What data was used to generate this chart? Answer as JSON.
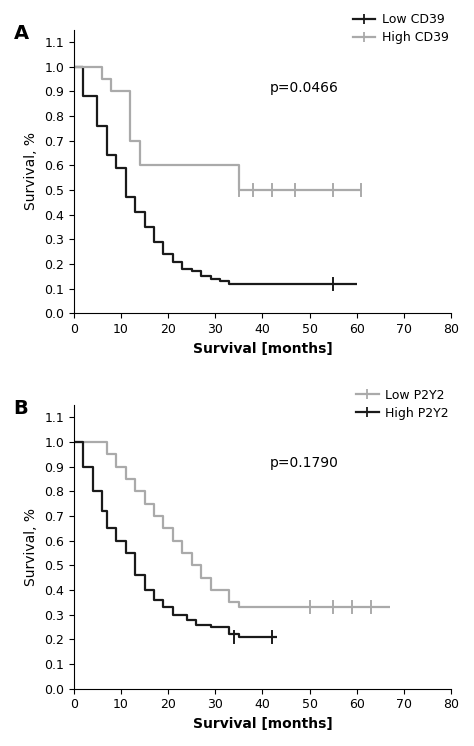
{
  "panel_A": {
    "label": "A",
    "p_value": "p=0.0466",
    "legend": [
      [
        "Low CD39",
        "#1a1a1a"
      ],
      [
        "High CD39",
        "#aaaaaa"
      ]
    ],
    "low_cd39": {
      "times": [
        0,
        2,
        5,
        7,
        9,
        11,
        13,
        15,
        17,
        19,
        21,
        23,
        25,
        27,
        29,
        31,
        33,
        60
      ],
      "surv": [
        1.0,
        0.88,
        0.76,
        0.64,
        0.59,
        0.47,
        0.41,
        0.35,
        0.29,
        0.24,
        0.21,
        0.18,
        0.17,
        0.15,
        0.14,
        0.13,
        0.12,
        0.12
      ],
      "censors_t": [
        55
      ],
      "censors_s": [
        0.12
      ],
      "color": "#1a1a1a"
    },
    "high_cd39": {
      "times": [
        0,
        4,
        6,
        8,
        12,
        14,
        30,
        35,
        61
      ],
      "surv": [
        1.0,
        1.0,
        0.95,
        0.9,
        0.7,
        0.6,
        0.6,
        0.5,
        0.5
      ],
      "censors_t": [
        35,
        38,
        42,
        47,
        55,
        61
      ],
      "censors_s": [
        0.5,
        0.5,
        0.5,
        0.5,
        0.5,
        0.5
      ],
      "color": "#aaaaaa"
    },
    "xlim": [
      0,
      80
    ],
    "ylim": [
      0.0,
      1.15
    ],
    "xticks": [
      0,
      10,
      20,
      30,
      40,
      50,
      60,
      70,
      80
    ],
    "yticks": [
      0.0,
      0.1,
      0.2,
      0.3,
      0.4,
      0.5,
      0.6,
      0.7,
      0.8,
      0.9,
      1.0,
      1.1
    ],
    "xlabel": "Survival [months]",
    "ylabel": "Survival, %"
  },
  "panel_B": {
    "label": "B",
    "p_value": "p=0.1790",
    "legend": [
      [
        "Low P2Y2",
        "#aaaaaa"
      ],
      [
        "High P2Y2",
        "#1a1a1a"
      ]
    ],
    "low_p2y2": {
      "times": [
        0,
        4,
        7,
        9,
        11,
        13,
        15,
        17,
        19,
        21,
        23,
        25,
        27,
        29,
        33,
        35,
        67
      ],
      "surv": [
        1.0,
        1.0,
        0.95,
        0.9,
        0.85,
        0.8,
        0.75,
        0.7,
        0.65,
        0.6,
        0.55,
        0.5,
        0.45,
        0.4,
        0.35,
        0.33,
        0.33
      ],
      "censors_t": [
        50,
        55,
        59,
        63
      ],
      "censors_s": [
        0.33,
        0.33,
        0.33,
        0.33
      ],
      "color": "#aaaaaa"
    },
    "high_p2y2": {
      "times": [
        0,
        2,
        4,
        6,
        7,
        9,
        11,
        13,
        15,
        17,
        19,
        21,
        24,
        26,
        29,
        33,
        35,
        43
      ],
      "surv": [
        1.0,
        0.9,
        0.8,
        0.72,
        0.65,
        0.6,
        0.55,
        0.46,
        0.4,
        0.36,
        0.33,
        0.3,
        0.28,
        0.26,
        0.25,
        0.22,
        0.21,
        0.21
      ],
      "censors_t": [
        34,
        42
      ],
      "censors_s": [
        0.21,
        0.21
      ],
      "color": "#1a1a1a"
    },
    "xlim": [
      0,
      80
    ],
    "ylim": [
      0.0,
      1.15
    ],
    "xticks": [
      0,
      10,
      20,
      30,
      40,
      50,
      60,
      70,
      80
    ],
    "yticks": [
      0.0,
      0.1,
      0.2,
      0.3,
      0.4,
      0.5,
      0.6,
      0.7,
      0.8,
      0.9,
      1.0,
      1.1
    ],
    "xlabel": "Survival [months]",
    "ylabel": "Survival, %"
  }
}
